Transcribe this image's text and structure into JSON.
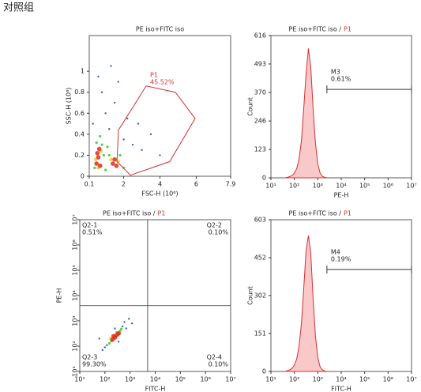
{
  "title": "对照组",
  "chart_data": [
    {
      "type": "scatter",
      "title": "PE iso+FITC iso",
      "xlabel": "FSC-H (10⁶)",
      "ylabel": "SSC-H (10⁶)",
      "xlim": [
        0.1,
        7.9
      ],
      "ylim": [
        0,
        1.34
      ],
      "xticks": [
        0.1,
        2,
        4,
        6,
        7.9
      ],
      "yticks": [
        0,
        0.2,
        0.4,
        0.6,
        0.8,
        1
      ],
      "log_x": false,
      "log_y": false,
      "series": [
        {
          "color": "#1f3fbf",
          "x": [
            0.3,
            1.2,
            1.5,
            2.0,
            2.5,
            3.0,
            1.0,
            0.8,
            2.2,
            1.7,
            3.5,
            2.8,
            0.6,
            1.3,
            4.0
          ],
          "y": [
            0.5,
            0.45,
            0.7,
            0.35,
            0.3,
            0.25,
            0.6,
            0.8,
            0.55,
            0.9,
            0.4,
            0.5,
            0.95,
            1.05,
            0.2
          ]
        },
        {
          "color": "#3cc23c",
          "x": [
            0.4,
            0.8,
            0.9,
            1.0,
            1.2,
            1.8,
            2.0,
            0.5,
            0.7,
            1.1
          ],
          "y": [
            0.08,
            0.3,
            0.2,
            0.06,
            0.2,
            0.2,
            0.08,
            0.32,
            0.38,
            0.28
          ]
        },
        {
          "color": "#e8d020",
          "x": [
            0.45,
            0.75,
            1.3,
            1.7,
            0.6
          ],
          "y": [
            0.16,
            0.24,
            0.16,
            0.14,
            0.08
          ]
        },
        {
          "color": "#e02a1a",
          "x": [
            0.5,
            0.6,
            0.7,
            0.55,
            1.4,
            1.5,
            1.6,
            0.65
          ],
          "y": [
            0.12,
            0.18,
            0.1,
            0.22,
            0.12,
            0.16,
            0.1,
            0.26
          ]
        }
      ],
      "gate": {
        "name": "P1",
        "label": "45.52%",
        "color": "#d9302f",
        "x": [
          1.71,
          3.24,
          4.85,
          5.94,
          4.54,
          2.37,
          1.63
        ],
        "y": [
          0.44,
          0.86,
          0.8,
          0.55,
          0.14,
          0.01,
          0.14
        ]
      }
    },
    {
      "type": "histogram",
      "title": "PE iso+FITC iso /",
      "title_gate": "P1",
      "xlabel": "PE-H",
      "ylabel": "Count",
      "xlim": [
        10,
        10000000
      ],
      "ylim": [
        0,
        616
      ],
      "log_x": true,
      "log_y": false,
      "xticks": [
        {
          "value": 10,
          "label": "10¹"
        },
        {
          "value": 100,
          "label": "10²"
        },
        {
          "value": 1000,
          "label": "10³"
        },
        {
          "value": 10000,
          "label": "10⁴"
        },
        {
          "value": 100000,
          "label": "10⁵"
        },
        {
          "value": 1000000,
          "label": "10⁶"
        },
        {
          "value": 10000000,
          "label": "10⁷"
        }
      ],
      "yticks": [
        0,
        123,
        246,
        370,
        493,
        616
      ],
      "color": "#d9302f",
      "fill": "#f9c8c8",
      "x": [
        40,
        50,
        63,
        79,
        100,
        126,
        158,
        200,
        251,
        316,
        398,
        501,
        631,
        794,
        1000,
        1259,
        1585,
        1995,
        2512
      ],
      "values": [
        0,
        2,
        5,
        10,
        20,
        40,
        80,
        160,
        300,
        450,
        560,
        480,
        300,
        150,
        60,
        20,
        6,
        2,
        0
      ],
      "marker": {
        "name": "M3",
        "label": "0.61%",
        "x": [
          2450,
          10000000
        ],
        "y": 383
      }
    },
    {
      "type": "scatter",
      "title": "PE iso+FITC iso /",
      "title_gate": "P1",
      "xlabel": "FITC-H",
      "ylabel": "PE-H",
      "xlim": [
        10,
        10000000
      ],
      "ylim": [
        10,
        10000000
      ],
      "log_x": true,
      "log_y": true,
      "xticks": [
        {
          "value": 10,
          "label": "10¹"
        },
        {
          "value": 100,
          "label": "10²"
        },
        {
          "value": 1000,
          "label": "10³"
        },
        {
          "value": 10000,
          "label": "10⁴"
        },
        {
          "value": 100000,
          "label": "10⁵"
        },
        {
          "value": 1000000,
          "label": "10⁶"
        },
        {
          "value": 10000000,
          "label": "10⁷"
        }
      ],
      "yticks": [
        {
          "value": 10,
          "label": "10¹"
        },
        {
          "value": 100,
          "label": "10²"
        },
        {
          "value": 1000,
          "label": "10³"
        },
        {
          "value": 10000,
          "label": "10⁴"
        },
        {
          "value": 100000,
          "label": "10⁵"
        },
        {
          "value": 1000000,
          "label": "10⁶"
        },
        {
          "value": 10000000,
          "label": "10⁷"
        }
      ],
      "series": [
        {
          "color": "#1f3fbf",
          "x": [
            80,
            100,
            500,
            600,
            700,
            250,
            350,
            900,
            60,
            1200
          ],
          "y": [
            70,
            90,
            600,
            900,
            500,
            500,
            150,
            1200,
            200,
            800
          ]
        },
        {
          "color": "#3cc23c",
          "x": [
            150,
            180,
            400,
            450,
            300,
            120
          ],
          "y": [
            130,
            160,
            400,
            480,
            350,
            110
          ]
        },
        {
          "color": "#e8d020",
          "x": [
            170,
            260,
            380
          ],
          "y": [
            200,
            240,
            330
          ]
        },
        {
          "color": "#e02a1a",
          "x": [
            200,
            250,
            300,
            350,
            220
          ],
          "y": [
            180,
            220,
            280,
            320,
            250
          ]
        }
      ],
      "quadrant": {
        "x": 5000,
        "y": 4000,
        "regions": [
          {
            "name": "Q2-1",
            "label": "0.51%"
          },
          {
            "name": "Q2-2",
            "label": "0.10%"
          },
          {
            "name": "Q2-3",
            "label": "99.30%"
          },
          {
            "name": "Q2-4",
            "label": "0.10%"
          }
        ]
      }
    },
    {
      "type": "histogram",
      "title": "PE iso+FITC iso /",
      "title_gate": "P1",
      "xlabel": "FITC-H",
      "ylabel": "Count",
      "xlim": [
        10,
        10000000
      ],
      "ylim": [
        0,
        603
      ],
      "log_x": true,
      "log_y": false,
      "xticks": [
        {
          "value": 10,
          "label": "10¹"
        },
        {
          "value": 100,
          "label": "10²"
        },
        {
          "value": 1000,
          "label": "10³"
        },
        {
          "value": 10000,
          "label": "10⁴"
        },
        {
          "value": 100000,
          "label": "10⁵"
        },
        {
          "value": 1000000,
          "label": "10⁶"
        },
        {
          "value": 10000000,
          "label": "10⁷"
        }
      ],
      "yticks": [
        0,
        151,
        302,
        452,
        603
      ],
      "color": "#d9302f",
      "fill": "#f9c8c8",
      "x": [
        40,
        50,
        63,
        79,
        100,
        126,
        158,
        200,
        251,
        316,
        398,
        501,
        631,
        794,
        1000,
        1259,
        1585,
        1995,
        2512
      ],
      "values": [
        0,
        3,
        6,
        12,
        25,
        50,
        100,
        190,
        330,
        480,
        540,
        470,
        290,
        140,
        55,
        18,
        6,
        2,
        0
      ],
      "marker": {
        "name": "M4",
        "label": "0.19%",
        "x": [
          2450,
          10000000
        ],
        "y": 405
      }
    }
  ]
}
